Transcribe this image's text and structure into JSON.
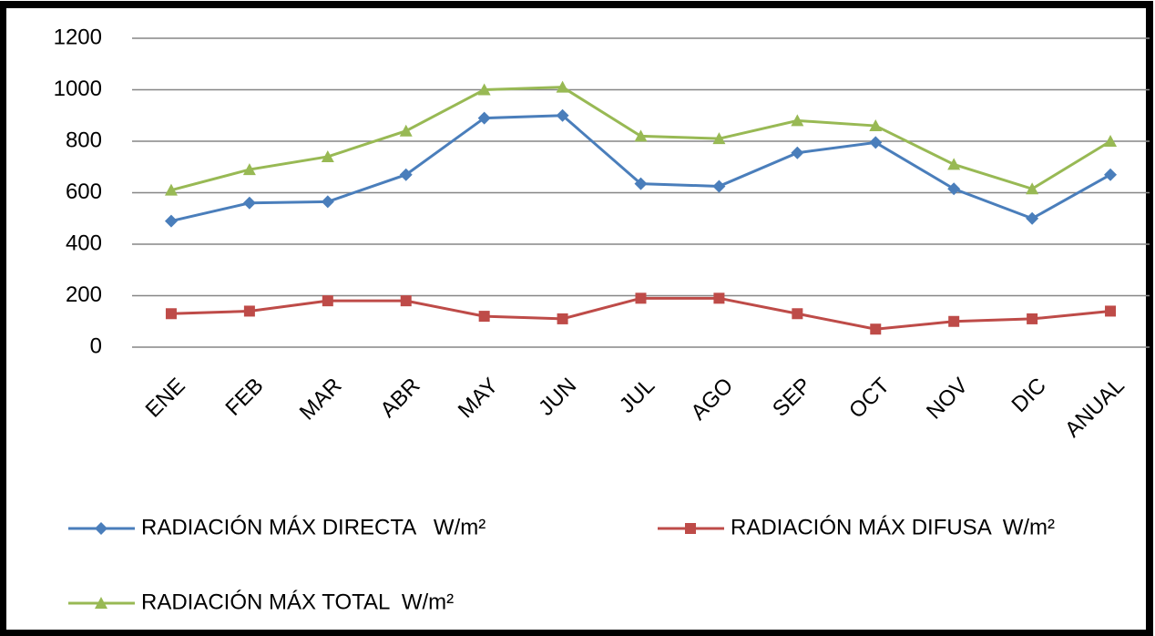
{
  "chart_data": {
    "type": "line",
    "categories": [
      "ENE",
      "FEB",
      "MAR",
      "ABR",
      "MAY",
      "JUN",
      "JUL",
      "AGO",
      "SEP",
      "OCT",
      "NOV",
      "DIC",
      "ANUAL"
    ],
    "series": [
      {
        "name": "RADIACIÓN MÁX DIRECTA   W/m²",
        "color": "#4a7ebb",
        "marker": "diamond",
        "values": [
          490,
          560,
          565,
          670,
          890,
          900,
          635,
          625,
          755,
          795,
          615,
          500,
          670
        ]
      },
      {
        "name": "RADIACIÓN MÁX DIFUSA  W/m²",
        "color": "#be4b48",
        "marker": "square",
        "values": [
          130,
          140,
          180,
          180,
          120,
          110,
          190,
          190,
          130,
          70,
          100,
          110,
          140
        ]
      },
      {
        "name": "RADIACIÓN MÁX TOTAL  W/m²",
        "color": "#98b954",
        "marker": "triangle",
        "values": [
          610,
          690,
          740,
          840,
          1000,
          1010,
          820,
          810,
          880,
          860,
          710,
          615,
          800
        ]
      }
    ],
    "ylim": [
      0,
      1200
    ],
    "yticks": [
      0,
      200,
      400,
      600,
      800,
      1000,
      1200
    ],
    "grid": true,
    "legend": "bottom"
  }
}
